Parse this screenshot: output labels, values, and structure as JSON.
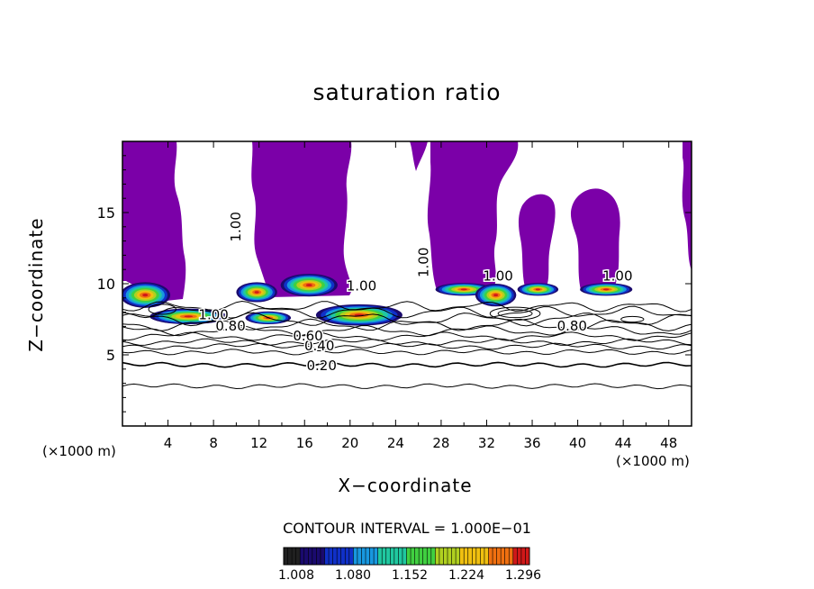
{
  "chart_data": {
    "type": "heatmap",
    "title": "saturation ratio",
    "xlabel": "X−coordinate",
    "ylabel": "Z−coordinate",
    "x_unit_left": "(×1000 m)",
    "x_unit_right": "(×1000 m)",
    "xlim": [
      0,
      50
    ],
    "ylim": [
      0,
      20
    ],
    "xticks": [
      4,
      8,
      12,
      16,
      20,
      24,
      28,
      32,
      36,
      40,
      44,
      48
    ],
    "yticks": [
      5,
      10,
      15
    ],
    "contour_interval_label": "CONTOUR INTERVAL = 1.000E−01",
    "colorbar": {
      "min": 1.008,
      "max": 1.32,
      "tick_labels": [
        "1.008",
        "1.080",
        "1.152",
        "1.224",
        "1.296"
      ],
      "colors": [
        "#202020",
        "#1a0a6e",
        "#1030c8",
        "#1898e0",
        "#20c8a0",
        "#40d040",
        "#b0d020",
        "#f0c010",
        "#f07010",
        "#d01818"
      ]
    },
    "contour_labels": [
      {
        "text": "0.20",
        "x": 17.5,
        "y": 4.2
      },
      {
        "text": "0.40",
        "x": 17.3,
        "y": 5.6
      },
      {
        "text": "0.60",
        "x": 16.3,
        "y": 6.3
      },
      {
        "text": "0.80",
        "x": 9.5,
        "y": 7.0
      },
      {
        "text": "0.80",
        "x": 39.5,
        "y": 7.0
      },
      {
        "text": "1.00",
        "x": 8.0,
        "y": 7.8
      },
      {
        "text": "1.00",
        "x": 21.0,
        "y": 9.8
      },
      {
        "text": "1.00",
        "x": 10.0,
        "y": 14.0
      },
      {
        "text": "1.00",
        "x": 26.5,
        "y": 11.5
      },
      {
        "text": "1.00",
        "x": 33.0,
        "y": 10.5
      },
      {
        "text": "1.00",
        "x": 43.5,
        "y": 10.5
      }
    ],
    "contour_levels": [
      0.2,
      0.4,
      0.6,
      0.8,
      1.0
    ],
    "fill_levels_min": 1.008,
    "colors": {
      "saturated_fill": "#7b00a8",
      "background": "#ffffff",
      "lines": "#000000"
    }
  }
}
